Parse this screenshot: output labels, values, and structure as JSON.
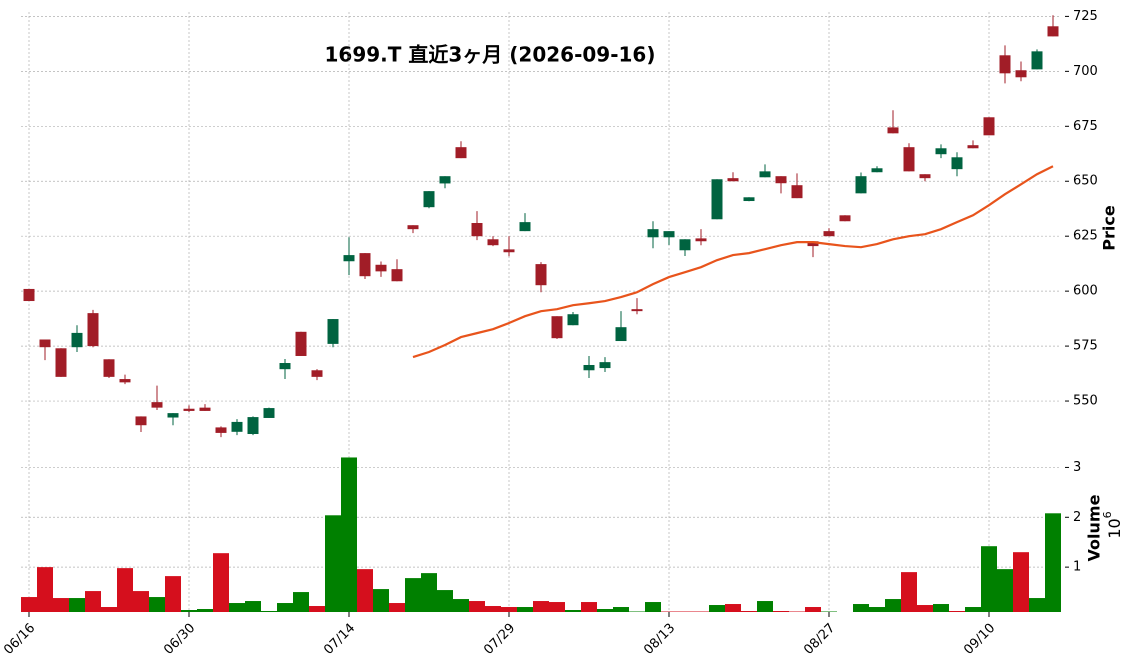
{
  "chart_data": {
    "type": "candlestick",
    "title": "1699.T  直近3ヶ月  (2026-09-16)",
    "y_label": "Price",
    "categories": [
      "06/16",
      null,
      null,
      null,
      null,
      null,
      null,
      null,
      null,
      null,
      "06/30",
      null,
      null,
      null,
      null,
      null,
      null,
      null,
      null,
      null,
      "07/14",
      null,
      null,
      null,
      null,
      null,
      null,
      null,
      null,
      null,
      "07/29",
      null,
      null,
      null,
      null,
      null,
      null,
      null,
      null,
      null,
      "08/13",
      null,
      null,
      null,
      null,
      null,
      null,
      null,
      null,
      null,
      "08/27",
      null,
      null,
      null,
      null,
      null,
      null,
      null,
      null,
      null,
      "09/10",
      null,
      null,
      null,
      null
    ],
    "open": [
      601,
      578,
      574,
      574.5,
      590,
      569,
      560,
      543,
      549.5,
      542.5,
      546.5,
      547,
      538,
      536,
      535,
      542.3,
      564.5,
      581.5,
      564,
      576,
      613.6,
      617.3,
      612,
      610,
      630,
      638.2,
      649,
      665.5,
      631,
      623.6,
      619,
      627.3,
      612.3,
      588.6,
      584.5,
      564,
      565,
      577.3,
      591.8,
      624.5,
      624.5,
      618.6,
      624,
      632.7,
      651.4,
      641,
      651.8,
      652.3,
      648.2,
      622.7,
      627.3,
      634.5,
      644.5,
      654.1,
      674.5,
      665.5,
      653.2,
      662.3,
      655.5,
      666.4,
      679.1,
      707.3,
      700.5,
      700.9,
      720.5
    ],
    "high": [
      601,
      578,
      574,
      584.5,
      591.5,
      569,
      562,
      543,
      557,
      544.5,
      548,
      548.6,
      538.5,
      541.8,
      543,
      547,
      569.1,
      581.5,
      564.5,
      587.3,
      624.5,
      617.3,
      613.5,
      614.5,
      630,
      645.5,
      652.3,
      668.2,
      636.4,
      625,
      625,
      635.5,
      613.2,
      588.6,
      590.5,
      570.5,
      570,
      590.9,
      596.8,
      631.8,
      627.3,
      623.6,
      628.2,
      650.9,
      654.1,
      642.7,
      657.7,
      652.3,
      653.6,
      622.7,
      628.6,
      634.5,
      654,
      656.8,
      682.3,
      667.3,
      653.2,
      666.8,
      663.2,
      668.6,
      679.1,
      711.8,
      704.5,
      710,
      725.5
    ],
    "low": [
      595.5,
      568.6,
      561,
      572.3,
      574.5,
      560.5,
      557.7,
      535.9,
      545.9,
      539,
      545,
      545.5,
      533.6,
      534.5,
      534.5,
      542.3,
      560,
      570.5,
      559.5,
      574.5,
      607.3,
      605.5,
      606.5,
      604.5,
      626.4,
      637.7,
      646.8,
      660.5,
      623.2,
      620.5,
      615.9,
      627.3,
      599.5,
      578.2,
      584.5,
      560.5,
      563.2,
      577.3,
      589.5,
      619.5,
      621,
      616,
      620.9,
      632.7,
      650,
      640.9,
      651.8,
      644.5,
      642.3,
      615.5,
      625,
      631.8,
      644.5,
      654.1,
      671.8,
      654.5,
      650,
      660.5,
      652.3,
      665,
      670.9,
      694.5,
      695.5,
      700.9,
      715.9
    ],
    "close": [
      595.5,
      574.5,
      561,
      581,
      575,
      561,
      558.5,
      539,
      547,
      544.5,
      545.5,
      545.5,
      535.5,
      540.5,
      542.7,
      546.8,
      567.3,
      570.5,
      561,
      587.3,
      616.4,
      606.8,
      609,
      604.5,
      628.2,
      645.5,
      652.3,
      660.5,
      625,
      620.9,
      617.7,
      631.4,
      602.7,
      578.6,
      589.5,
      566.4,
      567.7,
      583.6,
      590.9,
      628.2,
      627.3,
      623.6,
      622.7,
      650.9,
      650,
      642.7,
      654.5,
      649.1,
      642.3,
      620.5,
      625,
      631.8,
      652.3,
      655.9,
      671.8,
      654.5,
      651.4,
      665,
      660.9,
      665,
      670.9,
      699.1,
      697.3,
      709.1,
      715.9
    ],
    "up_color": "#006340",
    "down_color": "#a11d27",
    "ylim": [
      530,
      727
    ],
    "yticks": [
      550,
      575,
      600,
      625,
      650,
      675,
      700,
      725
    ],
    "grid": true,
    "ma": {
      "color": "#e8541c",
      "values": [
        null,
        null,
        null,
        null,
        null,
        null,
        null,
        null,
        null,
        null,
        null,
        null,
        null,
        null,
        null,
        null,
        null,
        null,
        null,
        null,
        null,
        null,
        null,
        null,
        570,
        572.3,
        575.5,
        579.1,
        580.9,
        582.7,
        585.5,
        588.6,
        590.9,
        591.8,
        593.6,
        594.5,
        595.5,
        597.3,
        599.5,
        603.2,
        606.4,
        608.6,
        610.9,
        614.1,
        616.4,
        617.3,
        619.1,
        620.9,
        622.3,
        622.3,
        621.4,
        620.5,
        620,
        621.4,
        623.6,
        625,
        625.9,
        628.2,
        631.4,
        634.5,
        639.1,
        644.1,
        648.6,
        653.2,
        656.8
      ]
    },
    "volume": {
      "label": "Volume",
      "scale_base": "10",
      "scale_exponent": "6",
      "up_color": "#008000",
      "down_color": "#d50f1d",
      "ylim": [
        0.1,
        3.45
      ],
      "yticks": [
        1,
        2,
        3
      ],
      "values": [
        0.4,
        1.0,
        0.38,
        0.38,
        0.52,
        0.2,
        0.98,
        0.52,
        0.4,
        0.82,
        0.14,
        0.16,
        1.28,
        0.28,
        0.32,
        0.12,
        0.28,
        0.5,
        0.22,
        2.04,
        3.2,
        0.96,
        0.56,
        0.28,
        0.78,
        0.88,
        0.54,
        0.36,
        0.32,
        0.22,
        0.2,
        0.2,
        0.32,
        0.3,
        0.14,
        0.3,
        0.16,
        0.2,
        0.11,
        0.3,
        0.11,
        0.11,
        0.11,
        0.24,
        0.26,
        0.12,
        0.32,
        0.12,
        0.11,
        0.2,
        0.11,
        0.1,
        0.26,
        0.2,
        0.36,
        0.9,
        0.24,
        0.26,
        0.12,
        0.2,
        1.42,
        0.96,
        1.3,
        0.38,
        2.08
      ]
    }
  }
}
